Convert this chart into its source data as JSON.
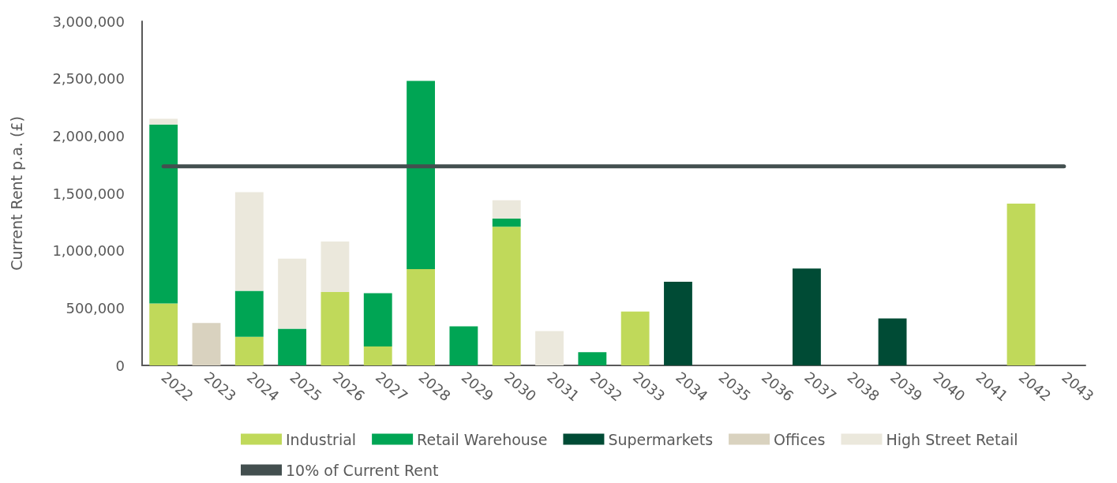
{
  "chart_data": {
    "type": "bar",
    "stacked": true,
    "ylabel": "Current Rent p.a. (£)",
    "categories": [
      "2022",
      "2023",
      "2024",
      "2025",
      "2026",
      "2027",
      "2028",
      "2029",
      "2030",
      "2031",
      "2032",
      "2033",
      "2034",
      "2035",
      "2036",
      "2037",
      "2038",
      "2039",
      "2040",
      "2041",
      "2042",
      "2043"
    ],
    "series": [
      {
        "name": "Industrial",
        "color": "#c0d95a",
        "values": [
          540000,
          null,
          250000,
          null,
          640000,
          165000,
          840000,
          null,
          1210000,
          null,
          null,
          470000,
          null,
          null,
          null,
          null,
          null,
          null,
          null,
          null,
          1410000,
          null
        ]
      },
      {
        "name": "Retail Warehouse",
        "color": "#00a554",
        "values": [
          1560000,
          null,
          400000,
          320000,
          null,
          465000,
          1640000,
          340000,
          70000,
          null,
          115000,
          null,
          null,
          null,
          null,
          null,
          null,
          null,
          null,
          null,
          null,
          null
        ]
      },
      {
        "name": "Supermarkets",
        "color": "#004b35",
        "values": [
          null,
          null,
          null,
          null,
          null,
          null,
          null,
          null,
          null,
          null,
          null,
          null,
          730000,
          null,
          null,
          845000,
          null,
          410000,
          null,
          null,
          null,
          null
        ]
      },
      {
        "name": "Offices",
        "color": "#d9d2bf",
        "values": [
          null,
          370000,
          null,
          null,
          null,
          null,
          null,
          null,
          null,
          null,
          null,
          null,
          null,
          null,
          null,
          null,
          null,
          null,
          null,
          null,
          null,
          null
        ]
      },
      {
        "name": "High Street Retail",
        "color": "#ebe8dc",
        "values": [
          50000,
          null,
          860000,
          610000,
          440000,
          null,
          null,
          null,
          160000,
          300000,
          null,
          null,
          null,
          null,
          null,
          null,
          null,
          null,
          null,
          null,
          null,
          null
        ]
      },
      {
        "name": "10% of Current Rent",
        "type": "line",
        "color": "#434f4f",
        "marker": "none",
        "line_style": "solid",
        "values": [
          1735000,
          1735000,
          1735000,
          1735000,
          1735000,
          1735000,
          1735000,
          1735000,
          1735000,
          1735000,
          1735000,
          1735000,
          1735000,
          1735000,
          1735000,
          1735000,
          1735000,
          1735000,
          1735000,
          1735000,
          1735000,
          1735000
        ]
      }
    ],
    "ylim": [
      0,
      3000000
    ],
    "yticks": [
      0,
      {
        "value": 500000,
        "label": "500,000"
      },
      {
        "value": 1000000,
        "label": "1,000,000"
      },
      {
        "value": 1500000,
        "label": "1,500,000"
      },
      {
        "value": 2000000,
        "label": "2,000,000"
      },
      {
        "value": 2500000,
        "label": "2,500,000"
      },
      {
        "value": 3000000,
        "label": "3,000,000"
      }
    ],
    "grid": false,
    "legend": "bottom"
  }
}
